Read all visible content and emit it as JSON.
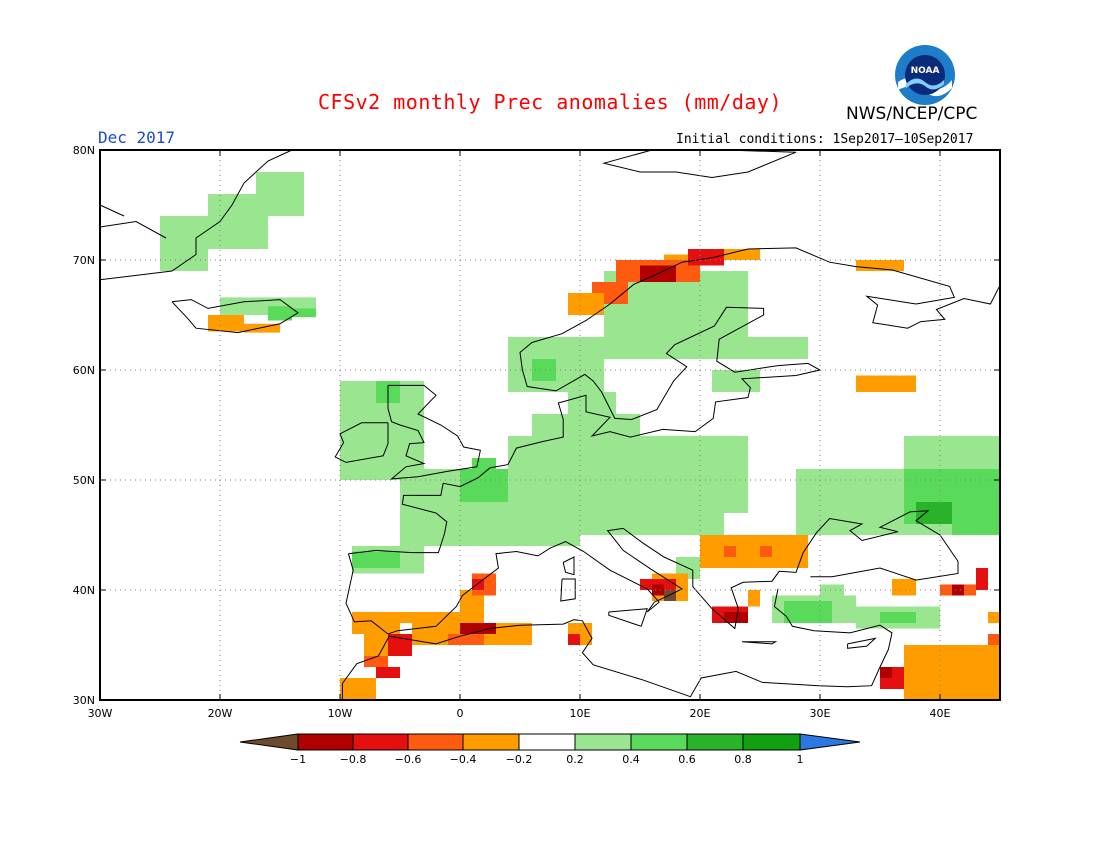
{
  "header": {
    "title": "CFSv2 monthly Prec anomalies (mm/day)",
    "month": "Dec 2017",
    "initial_conditions": "Initial conditions: 1Sep2017–10Sep2017",
    "agency": "NWS/NCEP/CPC",
    "logo_text": "NOAA",
    "logo_icon": "noaa-logo-icon"
  },
  "map": {
    "projection": "latitude-longitude",
    "lon_range": [
      -30,
      45
    ],
    "lat_range": [
      30,
      80
    ],
    "gridlines": "dotted",
    "lon_ticks": [
      "30W",
      "20W",
      "10W",
      "0",
      "10E",
      "20E",
      "30E",
      "40E"
    ],
    "lat_ticks": [
      "80N",
      "70N",
      "60N",
      "50N",
      "40N",
      "30N"
    ]
  },
  "colorbar": {
    "labels": [
      "−1",
      "−0.8",
      "−0.6",
      "−0.4",
      "−0.2",
      "0.2",
      "0.4",
      "0.6",
      "0.8",
      "1"
    ],
    "colors": [
      "#6f4a2f",
      "#b00000",
      "#e41010",
      "#ff5b10",
      "#ff9d00",
      "#ffffff",
      "#9ae690",
      "#5ada5a",
      "#2ab22a",
      "#10a010",
      "#2b78e0"
    ]
  }
}
